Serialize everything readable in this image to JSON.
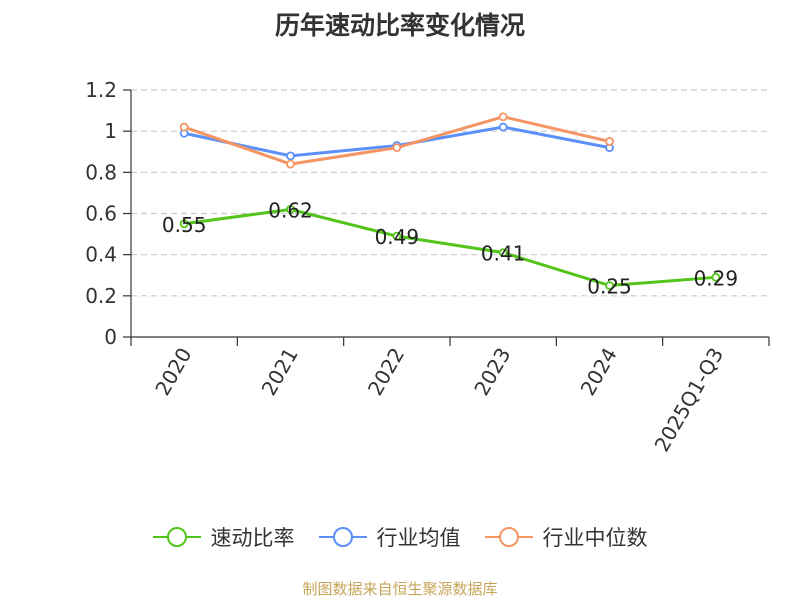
{
  "chart_data": {
    "type": "line",
    "title": "历年速动比率变化情况",
    "categories": [
      "2020",
      "2021",
      "2022",
      "2023",
      "2024",
      "2025Q1-Q3"
    ],
    "ylim": [
      0,
      1.2
    ],
    "yticks": [
      "0",
      "0.2",
      "0.4",
      "0.6",
      "0.8",
      "1",
      "1.2"
    ],
    "grid": true,
    "legend_position": "bottom",
    "series": [
      {
        "name": "速动比率",
        "color": "#52c41a",
        "values": [
          0.55,
          0.62,
          0.49,
          0.41,
          0.25,
          0.29
        ],
        "labels": [
          "0.55",
          "0.62",
          "0.49",
          "0.41",
          "0.25",
          "0.29"
        ]
      },
      {
        "name": "行业均值",
        "color": "#5b8ff9",
        "values": [
          0.99,
          0.88,
          0.93,
          1.02,
          0.92,
          null
        ]
      },
      {
        "name": "行业中位数",
        "color": "#f59563",
        "values": [
          1.02,
          0.84,
          0.92,
          1.07,
          0.95,
          null
        ]
      }
    ]
  },
  "legend": {
    "items": [
      "速动比率",
      "行业均值",
      "行业中位数"
    ]
  },
  "footer": {
    "source": "制图数据来自恒生聚源数据库"
  }
}
